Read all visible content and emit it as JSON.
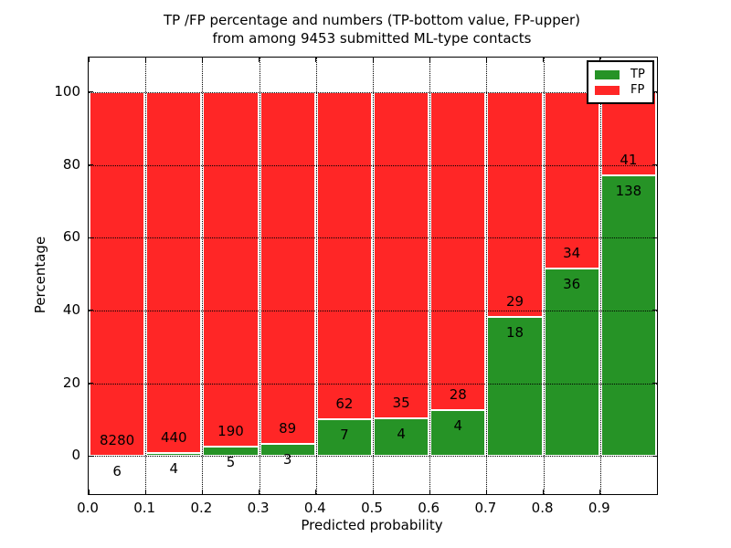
{
  "title": {
    "line1": "TP /FP percentage and numbers (TP-bottom value, FP-upper)",
    "line2": "from among 9453 submitted ML-type contacts"
  },
  "chart_data": {
    "type": "bar",
    "stacked": true,
    "normalized_to_percent": true,
    "title": "TP /FP percentage and numbers (TP-bottom value, FP-upper) from among 9453 submitted ML-type contacts",
    "xlabel": "Predicted probability",
    "ylabel": "Percentage",
    "total_contacts": 9453,
    "xlim": [
      0.0,
      1.0
    ],
    "ylim": [
      -10.5,
      109.5
    ],
    "grid": "dotted",
    "x_tick_labels": [
      "0.0",
      "0.1",
      "0.2",
      "0.3",
      "0.4",
      "0.5",
      "0.6",
      "0.7",
      "0.8",
      "0.9"
    ],
    "x_ticks": [
      0.0,
      0.1,
      0.2,
      0.3,
      0.4,
      0.5,
      0.6,
      0.7,
      0.8,
      0.9,
      1.0
    ],
    "y_ticks": [
      0,
      20,
      40,
      60,
      80,
      100
    ],
    "bin_width": 0.1,
    "bin_starts": [
      0.0,
      0.1,
      0.2,
      0.3,
      0.4,
      0.5,
      0.6,
      0.7,
      0.8,
      0.9
    ],
    "series": [
      {
        "name": "TP",
        "color": "#269326",
        "counts": [
          6,
          4,
          5,
          3,
          7,
          4,
          4,
          18,
          36,
          138
        ]
      },
      {
        "name": "FP",
        "color": "#ff2626",
        "counts": [
          8280,
          440,
          190,
          89,
          62,
          35,
          28,
          29,
          34,
          41
        ]
      }
    ],
    "legend": {
      "position": "upper right",
      "entries": [
        {
          "label": "TP",
          "color": "#269326"
        },
        {
          "label": "FP",
          "color": "#ff2626"
        }
      ]
    }
  }
}
